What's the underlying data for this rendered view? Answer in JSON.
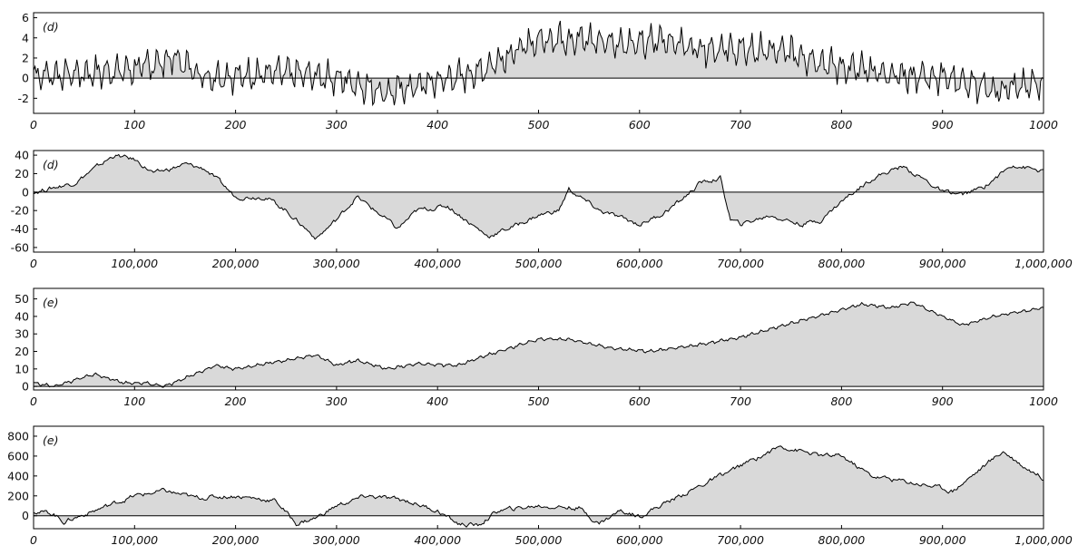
{
  "chart_data": [
    {
      "type": "area",
      "panel_label": "(d)",
      "title": "",
      "xlabel": "",
      "ylabel": "",
      "xlim": [
        0,
        1000
      ],
      "ylim": [
        -3.5,
        6.5
      ],
      "xticks": [
        0,
        100,
        200,
        300,
        400,
        500,
        600,
        700,
        800,
        900,
        1000
      ],
      "xtick_labels": [
        "0",
        "100",
        "200",
        "300",
        "400",
        "500",
        "600",
        "700",
        "800",
        "900",
        "1000"
      ],
      "yticks": [
        -2,
        0,
        2,
        4,
        6
      ],
      "ytick_labels": [
        "-2",
        "0",
        "2",
        "4",
        "6"
      ],
      "grid": false,
      "baseline": 0,
      "fill_color": "#d9d9d9",
      "line_color": "#000000",
      "oscillation": 1.6,
      "x": [
        0,
        50,
        100,
        140,
        170,
        200,
        250,
        300,
        350,
        400,
        440,
        460,
        500,
        520,
        550,
        600,
        625,
        650,
        700,
        750,
        790,
        850,
        900,
        950,
        1000
      ],
      "y": [
        0.3,
        0.5,
        0.9,
        2.0,
        0.1,
        0.2,
        0.6,
        0.0,
        -1.5,
        -0.3,
        0.6,
        1.8,
        3.8,
        4.0,
        3.8,
        3.4,
        3.9,
        3.1,
        2.8,
        2.6,
        1.3,
        0.3,
        0.2,
        -1.3,
        -0.5
      ]
    },
    {
      "type": "area",
      "panel_label": "(d)",
      "title": "",
      "xlabel": "",
      "ylabel": "",
      "xlim": [
        0,
        1000000
      ],
      "ylim": [
        -65,
        45
      ],
      "xticks": [
        0,
        100000,
        200000,
        300000,
        400000,
        500000,
        600000,
        700000,
        800000,
        900000,
        1000000
      ],
      "xtick_labels": [
        "0",
        "100,000",
        "200,000",
        "300,000",
        "400,000",
        "500,000",
        "600,000",
        "700,000",
        "800,000",
        "900,000",
        "1,000,000"
      ],
      "yticks": [
        -60,
        -40,
        -20,
        0,
        20,
        40
      ],
      "ytick_labels": [
        "-60",
        "-40",
        "-20",
        "0",
        "20",
        "40"
      ],
      "grid": false,
      "baseline": 0,
      "fill_color": "#d9d9d9",
      "line_color": "#000000",
      "oscillation": 0,
      "x": [
        0,
        20000,
        40000,
        60000,
        80000,
        100000,
        120000,
        150000,
        170000,
        185000,
        200000,
        230000,
        250000,
        280000,
        300000,
        320000,
        350000,
        360000,
        380000,
        410000,
        440000,
        450000,
        480000,
        500000,
        520000,
        530000,
        560000,
        600000,
        620000,
        640000,
        660000,
        680000,
        690000,
        700000,
        730000,
        760000,
        780000,
        800000,
        830000,
        860000,
        880000,
        900000,
        920000,
        940000,
        970000,
        1000000
      ],
      "y": [
        0,
        5,
        10,
        25,
        40,
        35,
        20,
        30,
        25,
        10,
        -5,
        -5,
        -20,
        -50,
        -30,
        -5,
        -30,
        -40,
        -20,
        -15,
        -40,
        -48,
        -35,
        -25,
        -20,
        3,
        -20,
        -35,
        -25,
        -10,
        10,
        15,
        -30,
        -35,
        -25,
        -35,
        -30,
        -10,
        15,
        28,
        15,
        0,
        -3,
        5,
        30,
        22
      ]
    },
    {
      "type": "area",
      "panel_label": "(e)",
      "title": "",
      "xlabel": "",
      "ylabel": "",
      "xlim": [
        0,
        1000
      ],
      "ylim": [
        -2,
        56
      ],
      "xticks": [
        0,
        100,
        200,
        300,
        400,
        500,
        600,
        700,
        800,
        900,
        1000
      ],
      "xtick_labels": [
        "0",
        "100",
        "200",
        "300",
        "400",
        "500",
        "600",
        "700",
        "800",
        "900",
        "1000"
      ],
      "yticks": [
        0,
        10,
        20,
        30,
        40,
        50
      ],
      "ytick_labels": [
        "0",
        "10",
        "20",
        "30",
        "40",
        "50"
      ],
      "grid": false,
      "baseline": 0,
      "fill_color": "#d9d9d9",
      "line_color": "#000000",
      "oscillation": 0.9,
      "x": [
        0,
        20,
        60,
        90,
        110,
        130,
        180,
        200,
        230,
        280,
        300,
        320,
        350,
        380,
        420,
        450,
        500,
        530,
        570,
        610,
        650,
        700,
        750,
        820,
        850,
        870,
        900,
        920,
        950,
        1000
      ],
      "y": [
        2,
        0,
        7,
        2,
        2,
        0,
        12,
        10,
        13,
        18,
        12,
        15,
        10,
        13,
        12,
        18,
        27,
        27,
        22,
        20,
        23,
        28,
        36,
        47,
        45,
        48,
        40,
        35,
        40,
        45
      ]
    },
    {
      "type": "area",
      "panel_label": "(e)",
      "title": "",
      "xlabel": "",
      "ylabel": "",
      "xlim": [
        0,
        1000000
      ],
      "ylim": [
        -130,
        900
      ],
      "xticks": [
        0,
        100000,
        200000,
        300000,
        400000,
        500000,
        600000,
        700000,
        800000,
        900000,
        1000000
      ],
      "xtick_labels": [
        "0",
        "100,000",
        "200,000",
        "300,000",
        "400,000",
        "500,000",
        "600,000",
        "700,000",
        "800,000",
        "900,000",
        "1,000,000"
      ],
      "yticks": [
        0,
        200,
        400,
        600,
        800
      ],
      "ytick_labels": [
        "0",
        "200",
        "400",
        "600",
        "800"
      ],
      "grid": false,
      "baseline": 0,
      "fill_color": "#d9d9d9",
      "line_color": "#000000",
      "oscillation": 0,
      "x": [
        0,
        20000,
        30000,
        60000,
        100000,
        130000,
        160000,
        200000,
        240000,
        260000,
        280000,
        300000,
        330000,
        370000,
        400000,
        420000,
        440000,
        460000,
        500000,
        540000,
        560000,
        580000,
        600000,
        620000,
        660000,
        700000,
        740000,
        780000,
        800000,
        830000,
        860000,
        890000,
        910000,
        960000,
        980000,
        1000000
      ],
      "y": [
        50,
        20,
        -60,
        50,
        200,
        250,
        180,
        200,
        150,
        -80,
        -20,
        100,
        200,
        150,
        50,
        -80,
        -100,
        50,
        100,
        80,
        -80,
        50,
        0,
        100,
        300,
        500,
        700,
        600,
        600,
        400,
        350,
        300,
        250,
        650,
        500,
        380
      ]
    }
  ]
}
